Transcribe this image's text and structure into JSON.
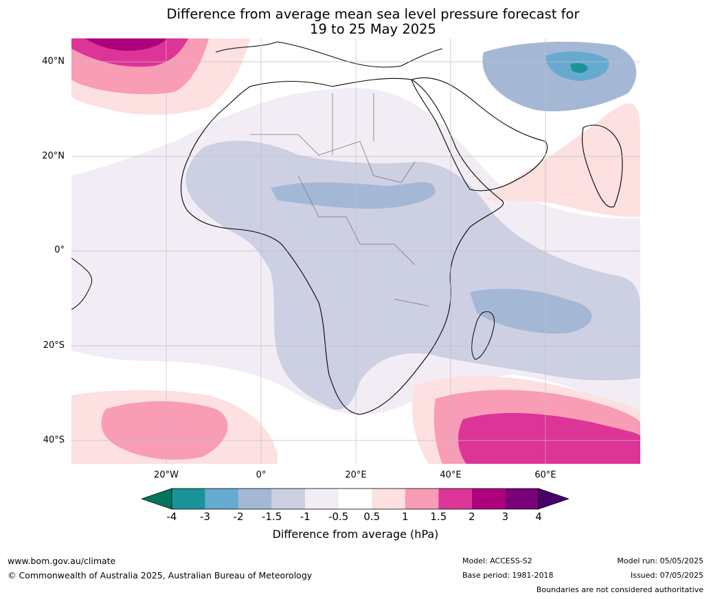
{
  "title_line1": "Difference from average mean sea level pressure forecast for",
  "title_line2": "19 to 25 May 2025",
  "lat_labels": [
    "40°N",
    "20°N",
    "0°",
    "20°S",
    "40°S"
  ],
  "lon_labels": [
    "20°W",
    "0°",
    "20°E",
    "40°E",
    "60°E"
  ],
  "colorbar": {
    "ticks": [
      "-4",
      "-3",
      "-2",
      "-1.5",
      "-1",
      "-0.5",
      "0.5",
      "1",
      "1.5",
      "2",
      "3",
      "4"
    ],
    "colors": [
      "#1b9498",
      "#67aad0",
      "#a4b8d6",
      "#cdcfe3",
      "#f2ecf5",
      "#ffffff",
      "#fde0e0",
      "#f99cb6",
      "#dd3497",
      "#ae017e",
      "#7a0177"
    ],
    "under_color": "#03755f",
    "over_color": "#49006a",
    "label": "Difference from average (hPa)"
  },
  "footer": {
    "website": "www.bom.gov.au/climate",
    "copyright": "© Commonwealth of Australia 2025, Australian Bureau of Meteorology",
    "model": "Model: ACCESS-S2",
    "base_period": "Base period: 1981-2018",
    "model_run": "Model run: 05/05/2025",
    "issued": "Issued: 07/05/2025",
    "disclaimer": "Boundaries are not considered authoritative"
  }
}
